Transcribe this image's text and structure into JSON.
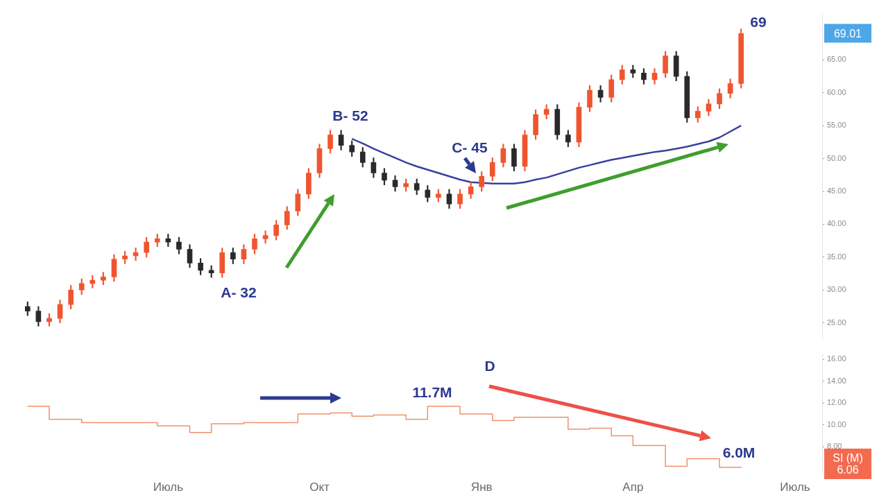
{
  "chart_data": [
    {
      "type": "candlestick",
      "colors": [
        "#2a2a2a",
        "#2a2a2a",
        "#f0552f",
        "#f0552f",
        "#f0552f",
        "#f0552f",
        "#f0552f",
        "#f0552f",
        "#f0552f",
        "#f0552f",
        "#f0552f",
        "#f0552f",
        "#f0552f",
        "#2a2a2a",
        "#2a2a2a",
        "#2a2a2a",
        "#2a2a2a",
        "#2a2a2a",
        "#f0552f",
        "#2a2a2a",
        "#f0552f",
        "#f0552f",
        "#f0552f",
        "#f0552f",
        "#f0552f",
        "#f0552f",
        "#f0552f",
        "#f0552f",
        "#f0552f",
        "#2a2a2a",
        "#2a2a2a",
        "#2a2a2a",
        "#2a2a2a",
        "#2a2a2a",
        "#2a2a2a",
        "#f0552f",
        "#2a2a2a",
        "#2a2a2a",
        "#f0552f",
        "#2a2a2a",
        "#f0552f",
        "#f0552f",
        "#f0552f",
        "#f0552f",
        "#f0552f",
        "#2a2a2a",
        "#f0552f",
        "#f0552f",
        "#f0552f",
        "#2a2a2a",
        "#2a2a2a",
        "#f0552f",
        "#f0552f",
        "#2a2a2a",
        "#f0552f",
        "#f0552f",
        "#2a2a2a",
        "#2a2a2a",
        "#f0552f",
        "#f0552f",
        "#2a2a2a",
        "#2a2a2a",
        "#f0552f",
        "#f0552f",
        "#f0552f",
        "#f0552f",
        "#f0552f",
        null,
        null,
        null,
        null,
        null,
        null,
        null
      ],
      "categories": [
        null,
        null,
        null,
        null,
        null,
        null,
        null,
        null,
        null,
        null,
        null,
        null,
        null,
        null,
        null,
        null,
        null,
        null,
        null,
        null,
        null,
        null,
        null,
        null,
        null,
        null,
        null,
        null,
        null,
        null,
        null,
        null,
        null,
        null,
        null,
        null,
        null,
        null,
        null,
        null,
        null,
        null,
        null,
        null,
        null,
        null,
        null,
        null,
        null,
        null,
        null,
        null,
        null,
        null,
        null,
        null,
        null,
        null,
        null,
        null,
        null,
        null,
        null,
        null,
        null,
        null,
        null,
        null,
        null,
        null,
        null,
        null,
        null,
        null
      ],
      "ohlc": [
        [
          27.5,
          28.2,
          26.1,
          26.8
        ],
        [
          26.8,
          27.5,
          24.5,
          25.2
        ],
        [
          25.2,
          26.4,
          24.5,
          25.7
        ],
        [
          25.7,
          28.5,
          25.0,
          27.8
        ],
        [
          27.8,
          30.7,
          27.1,
          30.0
        ],
        [
          30.0,
          31.7,
          29.3,
          31.0
        ],
        [
          31.0,
          32.2,
          30.3,
          31.5
        ],
        [
          31.5,
          32.7,
          30.8,
          32.0
        ],
        [
          32.0,
          35.4,
          31.3,
          34.7
        ],
        [
          34.7,
          35.9,
          34.0,
          35.2
        ],
        [
          35.2,
          36.4,
          34.5,
          35.7
        ],
        [
          35.7,
          38.0,
          35.0,
          37.3
        ],
        [
          37.3,
          38.5,
          36.6,
          37.8
        ],
        [
          37.8,
          38.5,
          36.6,
          37.3
        ],
        [
          37.3,
          38.0,
          35.5,
          36.2
        ],
        [
          36.2,
          36.9,
          33.4,
          34.1
        ],
        [
          34.1,
          34.8,
          32.3,
          33.0
        ],
        [
          33.0,
          33.7,
          31.9,
          32.6
        ],
        [
          32.6,
          36.4,
          31.9,
          35.7
        ],
        [
          35.7,
          36.4,
          34.0,
          34.7
        ],
        [
          34.7,
          36.9,
          34.0,
          36.2
        ],
        [
          36.2,
          38.5,
          35.5,
          37.8
        ],
        [
          37.8,
          39.0,
          37.1,
          38.3
        ],
        [
          38.3,
          40.6,
          37.6,
          39.9
        ],
        [
          39.9,
          42.7,
          39.2,
          42.0
        ],
        [
          42.0,
          45.3,
          41.3,
          44.6
        ],
        [
          44.6,
          48.5,
          43.9,
          47.8
        ],
        [
          47.8,
          52.2,
          47.1,
          51.5
        ],
        [
          51.5,
          54.3,
          50.8,
          53.6
        ],
        [
          53.6,
          54.3,
          51.3,
          52.0
        ],
        [
          52.0,
          52.7,
          50.3,
          51.0
        ],
        [
          51.0,
          51.7,
          48.7,
          49.4
        ],
        [
          49.4,
          50.1,
          47.1,
          47.8
        ],
        [
          47.8,
          48.5,
          46.0,
          46.7
        ],
        [
          46.7,
          47.4,
          45.0,
          45.7
        ],
        [
          45.7,
          46.9,
          45.0,
          46.2
        ],
        [
          46.2,
          46.9,
          44.5,
          45.2
        ],
        [
          45.2,
          45.9,
          43.4,
          44.1
        ],
        [
          44.1,
          45.3,
          43.4,
          44.6
        ],
        [
          44.6,
          45.3,
          42.4,
          43.1
        ],
        [
          43.1,
          45.3,
          42.4,
          44.6
        ],
        [
          44.6,
          46.4,
          43.9,
          45.7
        ],
        [
          45.7,
          48.0,
          45.0,
          47.3
        ],
        [
          47.3,
          50.1,
          46.6,
          49.4
        ],
        [
          49.4,
          52.2,
          48.7,
          51.5
        ],
        [
          51.5,
          52.2,
          48.1,
          48.8
        ],
        [
          48.8,
          54.3,
          48.1,
          53.6
        ],
        [
          53.6,
          57.4,
          52.9,
          56.7
        ],
        [
          56.7,
          58.2,
          56.0,
          57.5
        ],
        [
          57.5,
          58.2,
          52.9,
          53.6
        ],
        [
          53.6,
          54.3,
          51.8,
          52.5
        ],
        [
          52.5,
          58.5,
          51.8,
          57.8
        ],
        [
          57.8,
          61.1,
          57.1,
          60.4
        ],
        [
          60.4,
          61.1,
          58.6,
          59.3
        ],
        [
          59.3,
          62.7,
          58.6,
          62.0
        ],
        [
          62.0,
          64.2,
          61.3,
          63.5
        ],
        [
          63.5,
          64.2,
          62.3,
          63.0
        ],
        [
          63.0,
          63.7,
          61.3,
          62.0
        ],
        [
          62.0,
          63.7,
          61.3,
          63.0
        ],
        [
          63.0,
          66.3,
          62.3,
          65.6
        ],
        [
          65.6,
          66.3,
          61.8,
          62.5
        ],
        [
          62.5,
          63.2,
          55.5,
          56.2
        ],
        [
          56.2,
          57.9,
          55.5,
          57.2
        ],
        [
          57.2,
          59.0,
          56.5,
          58.3
        ],
        [
          58.3,
          60.6,
          57.6,
          59.9
        ],
        [
          59.9,
          62.1,
          59.2,
          61.4
        ],
        [
          61.4,
          69.7,
          60.7,
          69.0
        ],
        null,
        null,
        null,
        null,
        null,
        null,
        null
      ],
      "series": [
        {
          "type": "line",
          "color": "#3a3f9e",
          "values": [
            null,
            null,
            null,
            null,
            null,
            null,
            null,
            null,
            null,
            null,
            null,
            null,
            null,
            null,
            null,
            null,
            null,
            null,
            null,
            null,
            null,
            null,
            null,
            null,
            null,
            null,
            null,
            null,
            null,
            null,
            53.0,
            52.3,
            51.5,
            50.8,
            50.1,
            49.4,
            48.8,
            48.3,
            47.8,
            47.3,
            46.8,
            46.4,
            46.3,
            46.2,
            46.2,
            46.2,
            46.4,
            46.8,
            47.1,
            47.6,
            48.1,
            48.6,
            49.0,
            49.4,
            49.8,
            50.1,
            50.4,
            50.7,
            51.0,
            51.2,
            51.5,
            51.8,
            52.2,
            52.6,
            53.2,
            54.1,
            55.0,
            null,
            null,
            null,
            null,
            null,
            null,
            null
          ]
        }
      ],
      "ylim": [
        22.5,
        72
      ],
      "yticks": [
        {
          "value": 25,
          "label": "25.00"
        },
        {
          "value": 30,
          "label": "30.00"
        },
        {
          "value": 35,
          "label": "35.00"
        },
        {
          "value": 40,
          "label": "40.00"
        },
        {
          "value": 45,
          "label": "45.00"
        },
        {
          "value": 50,
          "label": "50.00"
        },
        {
          "value": 55,
          "label": "55.00"
        },
        {
          "value": 60,
          "label": "60.00"
        },
        {
          "value": 65,
          "label": "65.00"
        }
      ],
      "tick_labels": "y",
      "marker": "none",
      "annotations": [
        "A- 32",
        "B- 52",
        "C- 45",
        "69",
        "69.01"
      ]
    },
    {
      "type": "step",
      "color": "#f0906a",
      "categories": [
        null,
        null,
        null,
        null,
        null,
        null,
        null,
        null,
        null,
        null,
        null,
        null,
        null,
        "Июль",
        null,
        null,
        null,
        null,
        null,
        null,
        null,
        null,
        null,
        null,
        null,
        null,
        null,
        "Окт",
        null,
        null,
        null,
        null,
        null,
        null,
        null,
        null,
        null,
        null,
        null,
        null,
        null,
        null,
        "Янв",
        null,
        null,
        null,
        null,
        null,
        null,
        null,
        null,
        null,
        null,
        null,
        null,
        null,
        "Апр",
        null,
        null,
        null,
        null,
        null,
        null,
        null,
        null,
        null,
        null,
        null,
        null,
        null,
        null,
        "Июль",
        null,
        null
      ],
      "values": [
        11.7,
        11.7,
        10.5,
        10.5,
        10.5,
        10.2,
        10.2,
        10.2,
        10.2,
        10.2,
        10.2,
        10.2,
        9.9,
        9.9,
        9.9,
        9.3,
        9.3,
        10.1,
        10.1,
        10.1,
        10.2,
        10.2,
        10.2,
        10.2,
        10.2,
        11.0,
        11.0,
        11.0,
        11.1,
        11.1,
        10.8,
        10.8,
        10.9,
        10.9,
        10.9,
        10.5,
        10.5,
        11.7,
        11.7,
        11.7,
        11.0,
        11.0,
        11.0,
        10.4,
        10.4,
        10.7,
        10.7,
        10.7,
        10.7,
        10.7,
        9.6,
        9.6,
        9.7,
        9.7,
        9.0,
        9.0,
        8.1,
        8.1,
        8.1,
        6.2,
        6.2,
        6.9,
        6.9,
        6.9,
        6.1,
        6.1,
        6.06,
        null,
        null,
        null,
        null,
        null,
        null,
        null
      ],
      "ylim": [
        5.4,
        16.5
      ],
      "yticks": [
        {
          "value": 8,
          "label": "8.00"
        },
        {
          "value": 10,
          "label": "10.00"
        },
        {
          "value": 12,
          "label": "12.00"
        },
        {
          "value": 14,
          "label": "14.00"
        },
        {
          "value": 16,
          "label": "16.00"
        }
      ],
      "marker": "none",
      "annotations": [
        "11.7M",
        "D",
        "6.0M",
        "SI (M)\n6.06"
      ]
    }
  ]
}
